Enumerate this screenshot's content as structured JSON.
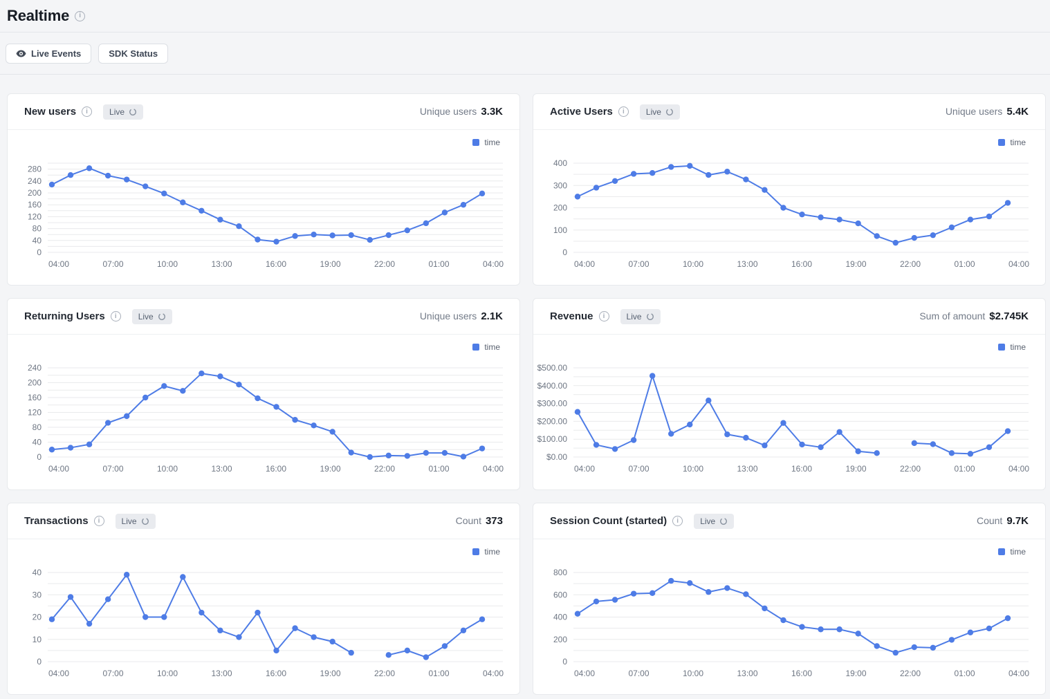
{
  "page": {
    "title": "Realtime",
    "toolbar": {
      "live_events_label": "Live Events",
      "sdk_status_label": "SDK Status"
    }
  },
  "colors": {
    "accent": "#4e7ce6",
    "grid": "#e9eaec",
    "axis_text": "#6e7683",
    "page_bg": "#f4f5f7"
  },
  "x_ticks": [
    "04:00",
    "07:00",
    "10:00",
    "13:00",
    "16:00",
    "19:00",
    "22:00",
    "01:00",
    "04:00"
  ],
  "chart_data": [
    {
      "type": "line",
      "title": "New users",
      "badge": "Live",
      "stat_label": "Unique users",
      "stat_value": "3.3K",
      "legend": "time",
      "x": [
        "04:00",
        "05:00",
        "06:00",
        "07:00",
        "08:00",
        "09:00",
        "10:00",
        "11:00",
        "12:00",
        "13:00",
        "14:00",
        "15:00",
        "16:00",
        "17:00",
        "18:00",
        "19:00",
        "20:00",
        "21:00",
        "22:00",
        "23:00",
        "00:00",
        "01:00",
        "02:00",
        "03:00"
      ],
      "values": [
        228,
        260,
        283,
        258,
        245,
        222,
        198,
        168,
        140,
        110,
        88,
        43,
        36,
        55,
        60,
        57,
        58,
        42,
        58,
        74,
        98,
        134,
        160,
        198
      ],
      "ylim": [
        0,
        300
      ],
      "y_major": 40,
      "y_minor": 20,
      "y_prefix": "",
      "grid": true,
      "legend_position": "top-right"
    },
    {
      "type": "line",
      "title": "Active Users",
      "badge": "Live",
      "stat_label": "Unique users",
      "stat_value": "5.4K",
      "legend": "time",
      "x": [
        "04:00",
        "05:00",
        "06:00",
        "07:00",
        "08:00",
        "09:00",
        "10:00",
        "11:00",
        "12:00",
        "13:00",
        "14:00",
        "15:00",
        "16:00",
        "17:00",
        "18:00",
        "19:00",
        "20:00",
        "21:00",
        "22:00",
        "23:00",
        "00:00",
        "01:00",
        "02:00",
        "03:00"
      ],
      "values": [
        250,
        290,
        320,
        352,
        356,
        383,
        388,
        347,
        362,
        327,
        280,
        200,
        170,
        157,
        147,
        130,
        73,
        43,
        65,
        77,
        112,
        147,
        161,
        222
      ],
      "ylim": [
        0,
        400
      ],
      "y_major": 100,
      "y_minor": 50,
      "y_prefix": "",
      "grid": true,
      "legend_position": "top-right"
    },
    {
      "type": "line",
      "title": "Returning Users",
      "badge": "Live",
      "stat_label": "Unique users",
      "stat_value": "2.1K",
      "legend": "time",
      "x": [
        "04:00",
        "05:00",
        "06:00",
        "07:00",
        "08:00",
        "09:00",
        "10:00",
        "11:00",
        "12:00",
        "13:00",
        "14:00",
        "15:00",
        "16:00",
        "17:00",
        "18:00",
        "19:00",
        "20:00",
        "21:00",
        "22:00",
        "23:00",
        "00:00",
        "01:00",
        "02:00",
        "03:00"
      ],
      "values": [
        20,
        25,
        34,
        92,
        110,
        160,
        191,
        178,
        225,
        217,
        195,
        158,
        135,
        100,
        85,
        68,
        12,
        0,
        4,
        3,
        11,
        11,
        1,
        23
      ],
      "ylim": [
        0,
        240
      ],
      "y_major": 40,
      "y_minor": 20,
      "y_prefix": "",
      "grid": true,
      "legend_position": "top-right"
    },
    {
      "type": "line",
      "title": "Revenue",
      "badge": "Live",
      "stat_label": "Sum of amount",
      "stat_value": "$2.745K",
      "legend": "time",
      "x": [
        "04:00",
        "05:00",
        "06:00",
        "07:00",
        "08:00",
        "09:00",
        "10:00",
        "11:00",
        "12:00",
        "13:00",
        "14:00",
        "15:00",
        "16:00",
        "17:00",
        "18:00",
        "19:00",
        "20:00",
        "21:00",
        "22:00",
        "23:00",
        "00:00",
        "01:00",
        "02:00",
        "03:00"
      ],
      "values": [
        253,
        68,
        45,
        95,
        455,
        130,
        182,
        317,
        127,
        108,
        65,
        191,
        70,
        55,
        140,
        32,
        22,
        null,
        78,
        72,
        22,
        18,
        55,
        145
      ],
      "ylim": [
        0,
        500
      ],
      "y_major": 100,
      "y_minor": 50,
      "y_prefix": "$",
      "grid": true,
      "legend_position": "top-right"
    },
    {
      "type": "line",
      "title": "Transactions",
      "badge": "Live",
      "stat_label": "Count",
      "stat_value": "373",
      "legend": "time",
      "x": [
        "04:00",
        "05:00",
        "06:00",
        "07:00",
        "08:00",
        "09:00",
        "10:00",
        "11:00",
        "12:00",
        "13:00",
        "14:00",
        "15:00",
        "16:00",
        "17:00",
        "18:00",
        "19:00",
        "20:00",
        "21:00",
        "22:00",
        "23:00",
        "00:00",
        "01:00",
        "02:00",
        "03:00"
      ],
      "values": [
        19,
        29,
        17,
        28,
        39,
        20,
        20,
        38,
        22,
        14,
        11,
        22,
        5,
        15,
        11,
        9,
        4,
        null,
        3,
        5,
        2,
        7,
        14,
        19
      ],
      "ylim": [
        0,
        40
      ],
      "y_major": 10,
      "y_minor": 5,
      "y_prefix": "",
      "grid": true,
      "legend_position": "top-right"
    },
    {
      "type": "line",
      "title": "Session Count (started)",
      "badge": "Live",
      "stat_label": "Count",
      "stat_value": "9.7K",
      "legend": "time",
      "x": [
        "04:00",
        "05:00",
        "06:00",
        "07:00",
        "08:00",
        "09:00",
        "10:00",
        "11:00",
        "12:00",
        "13:00",
        "14:00",
        "15:00",
        "16:00",
        "17:00",
        "18:00",
        "19:00",
        "20:00",
        "21:00",
        "22:00",
        "23:00",
        "00:00",
        "01:00",
        "02:00",
        "03:00"
      ],
      "values": [
        430,
        540,
        555,
        610,
        615,
        725,
        705,
        625,
        660,
        605,
        478,
        372,
        312,
        290,
        290,
        252,
        140,
        80,
        130,
        125,
        196,
        262,
        298,
        390
      ],
      "ylim": [
        0,
        800
      ],
      "y_major": 200,
      "y_minor": 100,
      "y_prefix": "",
      "grid": true,
      "legend_position": "top-right"
    }
  ]
}
